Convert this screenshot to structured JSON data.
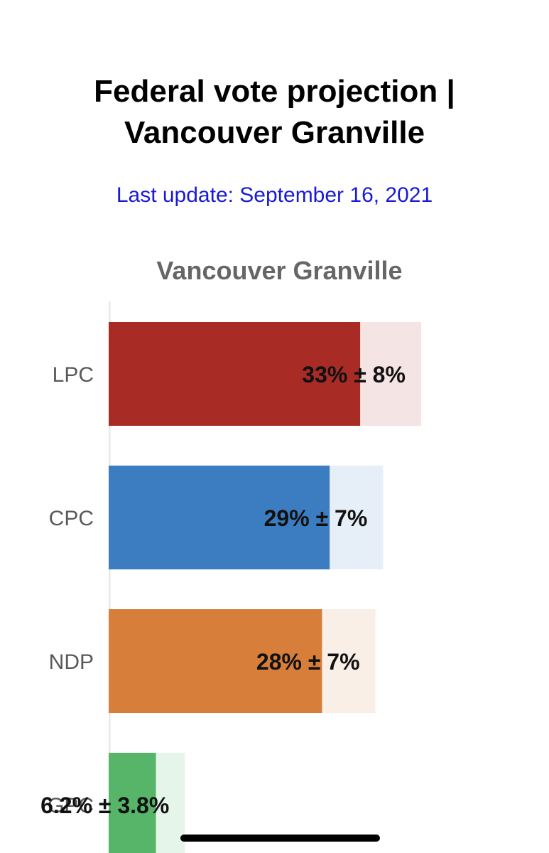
{
  "page": {
    "title": "Federal vote projection | Vancouver Granville",
    "update_label": "Last update: September 16, 2021"
  },
  "colors": {
    "update_text": "#1a1ad6",
    "axis_line": "#e3e3e3",
    "category_label": "#595959",
    "value_label": "#111111"
  },
  "chart_data": {
    "type": "bar",
    "orientation": "horizontal",
    "title": "Vancouver Granville",
    "categories": [
      "LPC",
      "CPC",
      "NDP",
      "GPC"
    ],
    "values": [
      33,
      29,
      28,
      6.2
    ],
    "error": [
      8,
      7,
      7,
      3.8
    ],
    "labels": [
      "33% ± 8%",
      "29% ± 7%",
      "28% ± 7%",
      "6.2% ± 3.8%"
    ],
    "colors": [
      "#a82b25",
      "#3c7dc1",
      "#d77e3b",
      "#57b569"
    ],
    "range_colors": [
      "#f4e4e3",
      "#e6eef8",
      "#faefe6",
      "#e6f5e9"
    ],
    "xlim": [
      0,
      41
    ],
    "grid": false,
    "legend": "none"
  }
}
